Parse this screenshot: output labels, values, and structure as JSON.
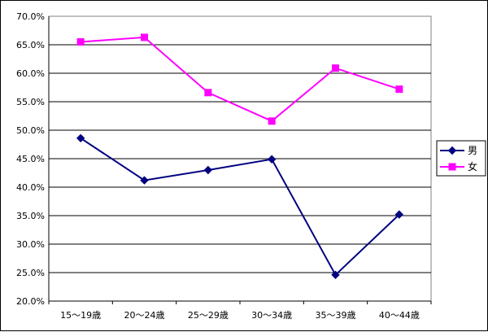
{
  "chart_data": {
    "type": "line",
    "categories": [
      "15～19歳",
      "20～24歳",
      "25～29歳",
      "30～34歳",
      "35～39歳",
      "40～44歳"
    ],
    "series": [
      {
        "name": "男",
        "values": [
          48.6,
          41.2,
          43.0,
          44.9,
          24.6,
          35.2
        ],
        "color": "#000080",
        "marker": "diamond"
      },
      {
        "name": "女",
        "values": [
          65.5,
          66.3,
          56.6,
          51.6,
          60.9,
          57.2
        ],
        "color": "#ff00ff",
        "marker": "square"
      }
    ],
    "ylim": [
      20,
      70
    ],
    "ytick_step": 5,
    "ytick_labels": [
      "20.0%",
      "25.0%",
      "30.0%",
      "35.0%",
      "40.0%",
      "45.0%",
      "50.0%",
      "55.0%",
      "60.0%",
      "65.0%",
      "70.0%"
    ],
    "grid": true,
    "legend": "right",
    "title": "",
    "xlabel": "",
    "ylabel": ""
  }
}
